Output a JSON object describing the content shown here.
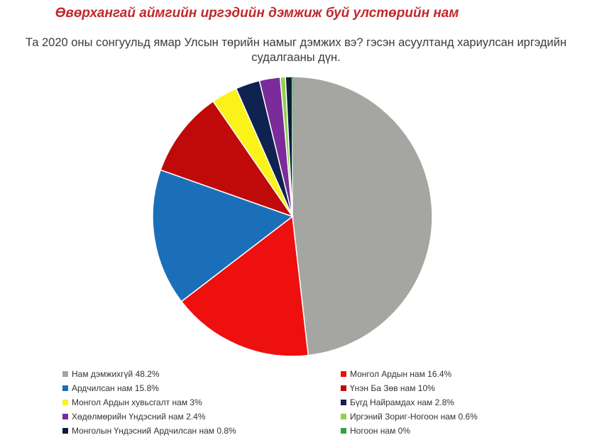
{
  "header": {
    "title": "Өвөрхангай аймгийн иргэдийн дэмжиж буй улстөрийн нам",
    "subtitle_line1": "Та 2020 оны сонгуульд ямар Улсын төрийн намыг дэмжих вэ? гэсэн асуултанд хариулсан иргэдийн",
    "subtitle_line2": "судалгааны дүн."
  },
  "chart_data": {
    "type": "pie",
    "title": "",
    "legend": "bottom",
    "slices": [
      {
        "label": "Нам дэмжихгүй 48.2%",
        "value": 48.2,
        "color": "#a5a5a1"
      },
      {
        "label": "Монгол Ардын нам 16.4%",
        "value": 16.4,
        "color": "#ee0f0f"
      },
      {
        "label": "Ардчилсан нам 15.8%",
        "value": 15.8,
        "color": "#1b6fb8"
      },
      {
        "label": "Үнэн Ба Зөв нам 10%",
        "value": 10,
        "color": "#c00a0a"
      },
      {
        "label": "Монгол Ардын хувьсгалт нам 3%",
        "value": 3,
        "color": "#fbf21a"
      },
      {
        "label": "Бүгд Найрамдах нам 2.8%",
        "value": 2.8,
        "color": "#0f2250"
      },
      {
        "label": "Хөдөлмөрийн Үндэсний нам 2.4%",
        "value": 2.4,
        "color": "#7b2c9a"
      },
      {
        "label": "Иргэний Зориг-Ногоон нам 0.6%",
        "value": 0.6,
        "color": "#92cf4f"
      },
      {
        "label": "Монголын Үндэсний Ардчилсан нам 0.8%",
        "value": 0.8,
        "color": "#0b1d3a"
      },
      {
        "label": "Ногоон нам 0%",
        "value": 0,
        "color": "#2da447"
      }
    ]
  }
}
